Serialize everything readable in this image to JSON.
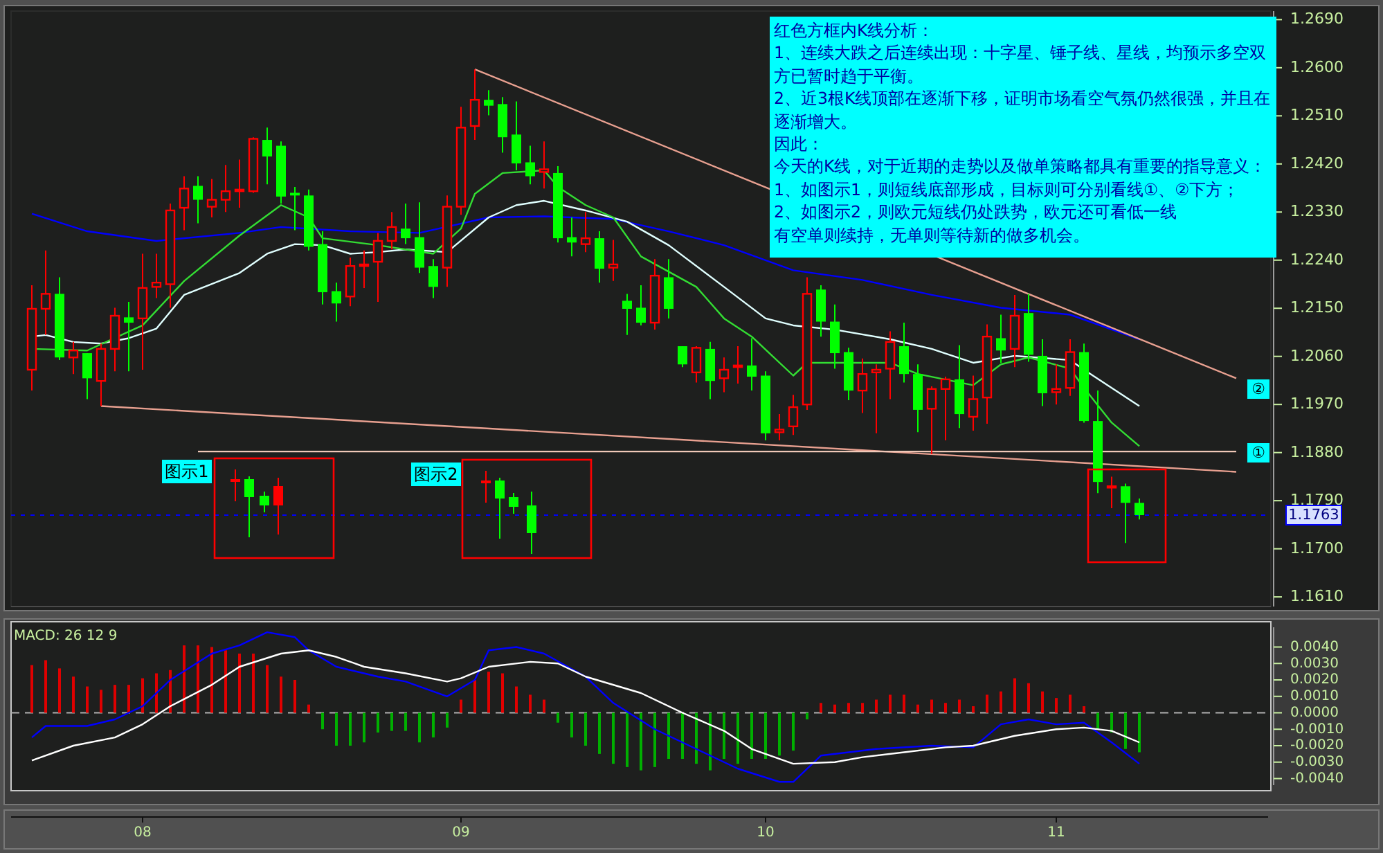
{
  "chart_data": [
    {
      "type": "candlestick",
      "categories": [
        null,
        null,
        null,
        null,
        null,
        null,
        null,
        null,
        null,
        null,
        null,
        null,
        null,
        null,
        null,
        null,
        null,
        null,
        null,
        null,
        null,
        null,
        null,
        null,
        null,
        null,
        null,
        null,
        null,
        null,
        null,
        null,
        null,
        null,
        null,
        null,
        null,
        null,
        null,
        null,
        null,
        null,
        null,
        null,
        null,
        null,
        null,
        null,
        null,
        null,
        null,
        null,
        null,
        null,
        null,
        null,
        null,
        null,
        null,
        null,
        null,
        null,
        null,
        null,
        null,
        null,
        null,
        null,
        null,
        null,
        null,
        null,
        null,
        null,
        null,
        null,
        null,
        null,
        null,
        null,
        null,
        null,
        null,
        null,
        null,
        null,
        null,
        null,
        null,
        null,
        null
      ],
      "ohlc": [
        null,
        [
          1.2035,
          1.2193,
          1.1996,
          1.2149
        ],
        [
          1.2149,
          1.2258,
          1.21,
          1.2177
        ],
        [
          1.2177,
          1.2208,
          1.2053,
          1.2058
        ],
        [
          1.2058,
          1.2087,
          1.2027,
          1.2071
        ],
        [
          1.2066,
          1.2066,
          1.198,
          1.2019
        ],
        [
          1.2014,
          1.2084,
          1.1967,
          1.2074
        ],
        [
          1.2074,
          1.2151,
          1.2032,
          1.2136
        ],
        [
          1.2133,
          1.2162,
          1.2032,
          1.2123
        ],
        [
          1.2131,
          1.2252,
          1.2035,
          1.2188
        ],
        [
          1.219,
          1.2252,
          1.2169,
          1.2198
        ],
        [
          1.2195,
          1.2346,
          1.2151,
          1.2333
        ],
        [
          1.2338,
          1.2397,
          1.2296,
          1.2374
        ],
        [
          1.2379,
          1.2397,
          1.2309,
          1.2353
        ],
        [
          1.234,
          1.2392,
          1.232,
          1.2353
        ],
        [
          1.2353,
          1.2418,
          1.233,
          1.2369
        ],
        [
          1.2369,
          1.2428,
          1.2338,
          1.2372
        ],
        [
          1.2369,
          1.247,
          1.2366,
          1.2467
        ],
        [
          1.2465,
          1.2488,
          1.2382,
          1.2434
        ],
        [
          1.2454,
          1.2462,
          1.2346,
          1.2359
        ],
        [
          1.2366,
          1.2377,
          1.2296,
          1.2361
        ],
        [
          1.2361,
          1.2372,
          1.2258,
          1.2265
        ],
        [
          1.227,
          1.2294,
          1.2157,
          1.218
        ],
        [
          1.2182,
          1.2198,
          1.2125,
          1.2159
        ],
        [
          1.2172,
          1.2245,
          1.2154,
          1.2229
        ],
        [
          1.2229,
          1.2258,
          1.2188,
          1.2232
        ],
        [
          1.2237,
          1.2291,
          1.2162,
          1.2276
        ],
        [
          1.2276,
          1.233,
          1.226,
          1.2302
        ],
        [
          1.2299,
          1.2346,
          1.227,
          1.2281
        ],
        [
          1.2283,
          1.2348,
          1.2216,
          1.2226
        ],
        [
          1.2229,
          1.2242,
          1.2169,
          1.219
        ],
        [
          1.2226,
          1.2361,
          1.219,
          1.234
        ],
        [
          1.234,
          1.2527,
          1.2325,
          1.2488
        ],
        [
          1.2491,
          1.2597,
          1.2465,
          1.254
        ],
        [
          1.254,
          1.2558,
          1.2511,
          1.2529
        ],
        [
          1.2532,
          1.2545,
          1.2441,
          1.247
        ],
        [
          1.2475,
          1.2537,
          1.2408,
          1.2421
        ],
        [
          1.2423,
          1.2454,
          1.2382,
          1.2397
        ],
        [
          1.2405,
          1.2462,
          1.2374,
          1.241
        ],
        [
          1.2403,
          1.2416,
          1.2273,
          1.2281
        ],
        [
          1.2283,
          1.232,
          1.2247,
          1.2273
        ],
        [
          1.227,
          1.233,
          1.2255,
          1.2281
        ],
        [
          1.2281,
          1.2294,
          1.2198,
          1.2224
        ],
        [
          1.2226,
          1.2278,
          1.2201,
          1.2232
        ],
        [
          1.2164,
          1.2177,
          1.21,
          1.2149
        ],
        [
          1.2151,
          1.2193,
          1.2118,
          1.2123
        ],
        [
          1.2123,
          1.2242,
          1.211,
          1.2211
        ],
        [
          1.2208,
          1.2242,
          1.2131,
          1.2149
        ],
        [
          1.2079,
          1.2079,
          1.204,
          1.2045
        ],
        [
          1.203,
          1.2079,
          1.2011,
          1.2076
        ],
        [
          1.2074,
          1.2087,
          1.198,
          1.2014
        ],
        [
          1.2019,
          1.2058,
          1.1993,
          1.2035
        ],
        [
          1.204,
          1.2079,
          1.2009,
          1.2043
        ],
        [
          1.2043,
          1.2094,
          1.1996,
          1.2022
        ],
        [
          1.2024,
          1.2032,
          1.1903,
          1.1916
        ],
        [
          1.1918,
          1.1952,
          1.1903,
          1.1923
        ],
        [
          1.1929,
          1.1988,
          1.1913,
          1.1965
        ],
        [
          1.197,
          1.2208,
          1.196,
          1.2177
        ],
        [
          1.2185,
          1.2193,
          1.2097,
          1.2125
        ],
        [
          1.2125,
          1.2157,
          1.2037,
          1.2066
        ],
        [
          1.2068,
          1.2076,
          1.1978,
          1.1996
        ],
        [
          1.1996,
          1.2056,
          1.1954,
          1.2027
        ],
        [
          1.203,
          1.2045,
          1.1916,
          1.2035
        ],
        [
          1.2037,
          1.2107,
          1.198,
          1.2087
        ],
        [
          1.2079,
          1.2123,
          1.2011,
          1.2027
        ],
        [
          1.2027,
          1.2045,
          1.1918,
          1.196
        ],
        [
          1.1962,
          1.2004,
          1.1877,
          1.1999
        ],
        [
          1.1999,
          1.2022,
          1.1903,
          1.2017
        ],
        [
          1.2017,
          1.2081,
          1.1926,
          1.1952
        ],
        [
          1.1947,
          1.2024,
          1.1921,
          1.198
        ],
        [
          1.1983,
          1.212,
          1.1934,
          1.2097
        ],
        [
          1.2094,
          1.2138,
          1.2048,
          1.2071
        ],
        [
          1.2074,
          1.2175,
          1.204,
          1.2136
        ],
        [
          1.2141,
          1.2177,
          1.205,
          1.2063
        ],
        [
          1.2061,
          1.2092,
          1.1967,
          1.1991
        ],
        [
          1.1993,
          1.2045,
          1.197,
          1.1999
        ],
        [
          1.2001,
          1.2092,
          1.1986,
          1.2068
        ],
        [
          1.2068,
          1.2084,
          1.1936,
          1.1939
        ],
        [
          1.1939,
          1.1996,
          1.1804,
          1.1825
        ],
        [
          1.1815,
          1.1835,
          1.1776,
          1.1817
        ],
        [
          1.1817,
          1.1822,
          1.1711,
          1.1786
        ],
        [
          1.1786,
          1.1794,
          1.1755,
          1.1763
        ],
        null,
        null,
        null,
        null,
        null,
        null,
        null,
        null,
        null
      ],
      "ylim": [
        1.1592,
        1.2706
      ],
      "yticks": [
        {
          "value": 1.161,
          "label": "1.1610"
        },
        {
          "value": 1.17,
          "label": "1.1700"
        },
        {
          "value": 1.179,
          "label": "1.1790"
        },
        {
          "value": 1.188,
          "label": "1.1880"
        },
        {
          "value": 1.197,
          "label": "1.1970"
        },
        {
          "value": 1.206,
          "label": "1.2060"
        },
        {
          "value": 1.215,
          "label": "1.2150"
        },
        {
          "value": 1.224,
          "label": "1.2240"
        },
        {
          "value": 1.233,
          "label": "1.2330"
        },
        {
          "value": 1.242,
          "label": "1.2420"
        },
        {
          "value": 1.251,
          "label": "1.2510"
        },
        {
          "value": 1.26,
          "label": "1.2600"
        },
        {
          "value": 1.269,
          "label": "1.2690"
        }
      ],
      "tick_labels": "y",
      "series": [
        {
          "type": "line",
          "color": "#0000ff",
          "values": [
            null,
            1.2327,
            null,
            null,
            null,
            1.2294,
            null,
            null,
            null,
            null,
            1.2276,
            null,
            null,
            null,
            null,
            null,
            1.2291,
            null,
            null,
            1.2302,
            null,
            null,
            null,
            null,
            1.2294,
            null,
            null,
            null,
            null,
            1.2291,
            null,
            null,
            null,
            null,
            1.232,
            null,
            null,
            null,
            1.2322,
            null,
            null,
            null,
            null,
            1.2317,
            null,
            null,
            null,
            1.2294,
            null,
            null,
            null,
            1.2268,
            null,
            null,
            null,
            null,
            1.2221,
            null,
            null,
            null,
            null,
            1.2203,
            null,
            null,
            null,
            null,
            1.2175,
            null,
            null,
            null,
            null,
            1.2151,
            null,
            null,
            null,
            null,
            1.2138,
            null,
            null,
            null,
            null,
            1.2092,
            null,
            null,
            null,
            null,
            null,
            null,
            null,
            null,
            null
          ]
        },
        {
          "type": "line",
          "color": "#e0ffff",
          "values": [
            null,
            1.2097,
            1.21,
            null,
            1.2087,
            null,
            1.2084,
            null,
            1.2094,
            null,
            1.2112,
            null,
            1.2175,
            null,
            null,
            null,
            1.2216,
            null,
            1.2252,
            null,
            1.227,
            null,
            1.2268,
            null,
            1.2252,
            null,
            1.2255,
            null,
            1.226,
            null,
            null,
            1.2255,
            null,
            null,
            1.232,
            null,
            1.2343,
            null,
            1.2351,
            null,
            null,
            1.2333,
            null,
            null,
            1.2312,
            null,
            null,
            1.2268,
            null,
            null,
            null,
            1.219,
            null,
            null,
            1.2131,
            null,
            1.2118,
            null,
            null,
            1.211,
            null,
            null,
            null,
            1.2092,
            null,
            null,
            1.2074,
            null,
            null,
            1.2048,
            null,
            null,
            1.2061,
            null,
            null,
            null,
            1.2053,
            1.2035,
            null,
            null,
            null,
            1.1967,
            null,
            null,
            null,
            null,
            null,
            null,
            null,
            null,
            null
          ]
        },
        {
          "type": "line",
          "color": "#33dd33",
          "values": [
            null,
            1.2074,
            null,
            null,
            null,
            1.2071,
            null,
            null,
            null,
            1.2118,
            null,
            null,
            1.2201,
            null,
            null,
            null,
            1.2286,
            null,
            null,
            1.2343,
            null,
            1.232,
            1.2281,
            null,
            null,
            null,
            1.2268,
            null,
            null,
            null,
            1.2252,
            null,
            1.2299,
            1.2364,
            null,
            1.2403,
            null,
            null,
            1.2408,
            1.2377,
            null,
            1.2343,
            null,
            1.232,
            null,
            1.2247,
            null,
            null,
            null,
            1.219,
            null,
            1.2131,
            null,
            1.2097,
            null,
            null,
            1.2024,
            1.2048,
            null,
            null,
            1.2048,
            null,
            null,
            1.2048,
            null,
            1.2027,
            null,
            null,
            null,
            1.2006,
            null,
            1.2045,
            null,
            1.2058,
            null,
            null,
            1.2037,
            1.2001,
            null,
            1.1936,
            null,
            1.1892,
            null,
            null,
            null,
            null,
            null,
            null,
            null,
            null,
            null
          ]
        },
        {
          "type": "line",
          "color": "#e8a090",
          "values": [
            null,
            null,
            null,
            null,
            null,
            null,
            null,
            null,
            null,
            null,
            null,
            null,
            null,
            null,
            null,
            null,
            null,
            null,
            null,
            null,
            null,
            null,
            null,
            null,
            null,
            null,
            null,
            null,
            null,
            null,
            null,
            null,
            null,
            1.2597,
            null,
            null,
            null,
            null,
            null,
            null,
            null,
            null,
            null,
            null,
            null,
            null,
            null,
            null,
            null,
            null,
            null,
            null,
            null,
            null,
            null,
            null,
            null,
            null,
            null,
            null,
            null,
            null,
            null,
            null,
            null,
            null,
            null,
            null,
            null,
            null,
            null,
            null,
            null,
            null,
            null,
            null,
            null,
            null,
            null,
            null,
            null,
            null,
            null,
            null,
            null,
            null,
            null,
            null,
            1.2019,
            null,
            null
          ]
        },
        {
          "type": "line",
          "color": "#e8a090",
          "values": [
            null,
            null,
            null,
            null,
            null,
            null,
            1.1967,
            null,
            null,
            null,
            null,
            null,
            null,
            null,
            null,
            null,
            null,
            null,
            null,
            null,
            null,
            null,
            null,
            null,
            null,
            null,
            null,
            null,
            null,
            null,
            null,
            null,
            null,
            null,
            null,
            null,
            null,
            null,
            null,
            null,
            null,
            null,
            null,
            null,
            null,
            null,
            null,
            null,
            null,
            null,
            null,
            null,
            null,
            null,
            null,
            null,
            null,
            null,
            null,
            null,
            null,
            null,
            null,
            null,
            null,
            null,
            null,
            null,
            null,
            null,
            null,
            null,
            null,
            null,
            null,
            null,
            null,
            null,
            null,
            null,
            null,
            null,
            null,
            null,
            null,
            null,
            null,
            null,
            1.1844,
            null,
            null
          ]
        },
        {
          "type": "line",
          "color": "#f0c8b8",
          "values": [
            null,
            null,
            null,
            null,
            null,
            null,
            null,
            null,
            null,
            null,
            null,
            null,
            null,
            1.1882,
            null,
            null,
            null,
            null,
            null,
            null,
            null,
            null,
            null,
            null,
            null,
            null,
            null,
            null,
            null,
            null,
            null,
            null,
            null,
            null,
            null,
            null,
            null,
            null,
            null,
            null,
            null,
            null,
            null,
            null,
            null,
            null,
            null,
            null,
            null,
            null,
            null,
            null,
            null,
            null,
            null,
            null,
            null,
            null,
            null,
            null,
            null,
            null,
            null,
            null,
            null,
            null,
            null,
            null,
            null,
            null,
            null,
            null,
            null,
            null,
            null,
            null,
            null,
            null,
            null,
            null,
            null,
            null,
            null,
            null,
            null,
            null,
            null,
            null,
            1.1882,
            null,
            null
          ]
        }
      ],
      "ref_lines": [
        {
          "axis": "y",
          "value": 1.1763,
          "label": "1.1763",
          "color": "#0000ff",
          "line_style": "dotted"
        }
      ],
      "annotations": [
        "红色方框内K线分析：",
        "1、连续大跌之后连续出现：十字星、锤子线、星线，均预示多空双方已暂时趋于平衡。",
        "2、近3根K线顶部在逐渐下移，证明市场看空气氛仍然很强，并且在逐渐增大。",
        "因此：",
        "今天的K线，对于近期的走势以及做单策略都具有重要的指导意义：",
        "1、如图示1，则短线底部形成，目标则可分别看线①、②下方；",
        "2、如图示2，则欧元短线仍处跌势，欧元还可看低一线",
        "有空单则续持，无单则等待新的做多机会。",
        "图示1",
        "图示2",
        "①",
        "②"
      ]
    },
    {
      "type": "bar",
      "title": "MACD: 26 12 9",
      "categories": [
        null,
        null,
        null,
        null,
        null,
        null,
        null,
        null,
        null,
        "08",
        null,
        null,
        null,
        null,
        null,
        null,
        null,
        null,
        null,
        null,
        null,
        null,
        null,
        null,
        null,
        null,
        null,
        null,
        null,
        null,
        null,
        null,
        "09",
        null,
        null,
        null,
        null,
        null,
        null,
        null,
        null,
        null,
        null,
        null,
        null,
        null,
        null,
        null,
        null,
        null,
        null,
        null,
        null,
        null,
        "10",
        null,
        null,
        null,
        null,
        null,
        null,
        null,
        null,
        null,
        null,
        null,
        null,
        null,
        null,
        null,
        null,
        null,
        null,
        null,
        null,
        "11",
        null,
        null,
        null,
        null,
        null,
        null,
        null,
        null,
        null,
        null,
        null,
        null,
        null,
        null,
        null
      ],
      "ylim": [
        -0.0044,
        0.0052
      ],
      "yticks": [
        {
          "value": -0.004,
          "label": "-0.0040"
        },
        {
          "value": -0.003,
          "label": "-0.0030"
        },
        {
          "value": -0.002,
          "label": "-0.0020"
        },
        {
          "value": -0.001,
          "label": "-0.0010"
        },
        {
          "value": 0,
          "label": "0.0000"
        },
        {
          "value": 0.001,
          "label": "0.0010"
        },
        {
          "value": 0.002,
          "label": "0.0020"
        },
        {
          "value": 0.003,
          "label": "0.0030"
        },
        {
          "value": 0.004,
          "label": "0.0040"
        }
      ],
      "series": [
        {
          "type": "bar",
          "colors": [
            null,
            "#e00000",
            "#e00000",
            "#e00000",
            "#e00000",
            "#e00000",
            "#e00000",
            "#e00000",
            "#e00000",
            "#e00000",
            "#e00000",
            "#e00000",
            "#e00000",
            "#e00000",
            "#e00000",
            "#e00000",
            "#e00000",
            "#e00000",
            "#e00000",
            "#e00000",
            "#e00000",
            "#e00000",
            "#00b000",
            "#00b000",
            "#00b000",
            "#00b000",
            "#00b000",
            "#00b000",
            "#00b000",
            "#00b000",
            "#00b000",
            "#00b000",
            "#e00000",
            "#e00000",
            "#e00000",
            "#e00000",
            "#e00000",
            "#e00000",
            "#e00000",
            "#00b000",
            "#00b000",
            "#00b000",
            "#00b000",
            "#00b000",
            "#00b000",
            "#00b000",
            "#00b000",
            "#00b000",
            "#00b000",
            "#00b000",
            "#00b000",
            "#00b000",
            "#00b000",
            "#00b000",
            "#00b000",
            "#00b000",
            "#00b000",
            "#00b000",
            "#e00000",
            "#e00000",
            "#e00000",
            "#e00000",
            "#e00000",
            "#e00000",
            "#e00000",
            "#e00000",
            "#e00000",
            "#e00000",
            "#e00000",
            "#e00000",
            "#e00000",
            "#e00000",
            "#e00000",
            "#e00000",
            "#e00000",
            "#e00000",
            "#e00000",
            "#e00000",
            "#00b000",
            "#00b000",
            "#00b000",
            "#00b000",
            null,
            null,
            null,
            null,
            null,
            null,
            null,
            null,
            null
          ],
          "values": [
            null,
            0.0029,
            0.0032,
            0.0027,
            0.0022,
            0.0016,
            0.0014,
            0.0017,
            0.0017,
            0.0021,
            0.0024,
            0.0026,
            0.0041,
            0.0041,
            0.004,
            0.0038,
            0.0036,
            0.0036,
            0.0029,
            0.0022,
            0.002,
            0.0005,
            -0.001,
            -0.002,
            -0.002,
            -0.0018,
            -0.0012,
            -0.0011,
            -0.0011,
            -0.0018,
            -0.0015,
            -0.0009,
            0.0008,
            0.002,
            0.0025,
            0.0024,
            0.0016,
            0.0011,
            0.0008,
            -0.0006,
            -0.0015,
            -0.002,
            -0.0025,
            -0.0031,
            -0.0033,
            -0.0035,
            -0.0033,
            -0.0028,
            -0.0028,
            -0.0031,
            -0.0035,
            -0.0028,
            -0.0031,
            -0.0028,
            -0.0028,
            -0.0026,
            -0.0023,
            -0.0004,
            0.0006,
            0.0005,
            0.0006,
            0.0006,
            0.0008,
            0.0011,
            0.0011,
            0.0005,
            0.0008,
            0.0006,
            0.0008,
            0.0004,
            0.0011,
            0.0013,
            0.0021,
            0.0018,
            0.0013,
            0.0009,
            0.0011,
            0.0004,
            -0.001,
            -0.0012,
            -0.0022,
            -0.0024,
            null,
            null,
            null,
            null,
            null,
            null,
            null,
            null,
            null
          ]
        },
        {
          "type": "line",
          "color": "#0000ff",
          "values": [
            null,
            -0.0015,
            -0.0008,
            null,
            null,
            -0.0008,
            null,
            -0.0004,
            null,
            0.0004,
            null,
            0.002,
            null,
            null,
            0.0036,
            null,
            0.0041,
            null,
            0.0049,
            null,
            0.0046,
            0.0038,
            null,
            0.0028,
            null,
            null,
            0.0022,
            null,
            0.0019,
            null,
            null,
            0.001,
            null,
            0.002,
            0.0038,
            null,
            0.004,
            null,
            0.0036,
            null,
            null,
            0.0022,
            null,
            0.0006,
            null,
            null,
            -0.001,
            null,
            null,
            null,
            -0.0026,
            null,
            -0.0034,
            null,
            null,
            -0.0042,
            -0.0042,
            null,
            -0.0026,
            null,
            -0.0024,
            null,
            -0.0022,
            null,
            null,
            null,
            -0.002,
            null,
            null,
            -0.0021,
            null,
            -0.0007,
            null,
            -0.0004,
            null,
            -0.0007,
            null,
            -0.0006,
            null,
            -0.0018,
            null,
            -0.0031,
            null,
            null,
            null,
            null,
            null,
            null,
            null,
            null,
            null
          ]
        },
        {
          "type": "line",
          "color": "#ffffff",
          "values": [
            null,
            -0.0029,
            null,
            null,
            -0.002,
            null,
            null,
            -0.0015,
            null,
            -0.0007,
            null,
            0.0004,
            null,
            null,
            0.0017,
            null,
            0.0028,
            null,
            null,
            0.0036,
            null,
            0.0038,
            null,
            0.0034,
            null,
            0.0028,
            null,
            null,
            0.0024,
            null,
            null,
            0.0019,
            0.0021,
            null,
            0.0028,
            null,
            null,
            0.0031,
            null,
            0.003,
            null,
            0.0022,
            null,
            null,
            null,
            0.0012,
            null,
            null,
            0,
            null,
            null,
            -0.0011,
            null,
            -0.0022,
            null,
            null,
            -0.0031,
            null,
            null,
            -0.003,
            null,
            -0.0027,
            null,
            null,
            -0.0024,
            null,
            null,
            -0.0021,
            null,
            -0.002,
            null,
            null,
            -0.0014,
            null,
            null,
            -0.001,
            null,
            -0.0009,
            null,
            -0.0011,
            null,
            -0.0018,
            null,
            null,
            null,
            null,
            null,
            null,
            null,
            null,
            null
          ]
        }
      ],
      "ref_lines": [
        {
          "axis": "y",
          "value": 0,
          "color": "#b0b0b0",
          "line_style": "dashed"
        }
      ]
    }
  ]
}
